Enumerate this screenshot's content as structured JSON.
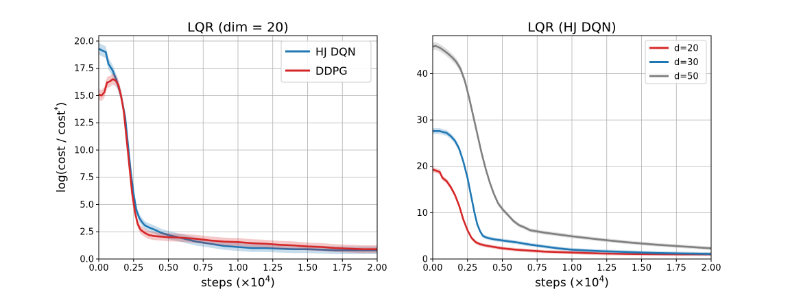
{
  "chart_data": [
    {
      "type": "line",
      "title": "LQR (dim = 20)",
      "xlabel": "steps (×10",
      "xlabel_exp": "4",
      "xlabel_close": ")",
      "ylabel": "log(cost / cost",
      "ylabel_sup": "*",
      "ylabel_close": ")",
      "xlim": [
        0,
        2
      ],
      "ylim": [
        0,
        20.5
      ],
      "x_ticks": [
        0,
        0.25,
        0.5,
        0.75,
        1.0,
        1.25,
        1.5,
        1.75,
        2.0
      ],
      "x_tick_labels": [
        "0.00",
        "0.25",
        "0.50",
        "0.75",
        "1.00",
        "1.25",
        "1.50",
        "1.75",
        "2.00"
      ],
      "y_ticks": [
        0,
        2.5,
        5,
        7.5,
        10,
        12.5,
        15,
        17.5,
        20
      ],
      "y_tick_labels": [
        "0.0",
        "2.5",
        "5.0",
        "7.5",
        "10.0",
        "12.5",
        "15.0",
        "17.5",
        "20.0"
      ],
      "grid": true,
      "legend_position": "top-right",
      "series": [
        {
          "name": "HJ DQN",
          "color": "#1f77b4",
          "x": [
            0,
            0.03,
            0.05,
            0.07,
            0.1,
            0.13,
            0.16,
            0.19,
            0.21,
            0.23,
            0.25,
            0.27,
            0.29,
            0.31,
            0.33,
            0.36,
            0.4,
            0.45,
            0.5,
            0.6,
            0.7,
            0.8,
            0.9,
            1.0,
            1.1,
            1.2,
            1.3,
            1.4,
            1.5,
            1.6,
            1.7,
            1.8,
            1.9,
            2.0
          ],
          "y": [
            19.3,
            19.1,
            19.0,
            17.9,
            17.3,
            16.3,
            15.0,
            13.0,
            10.5,
            8.0,
            6.0,
            4.5,
            3.8,
            3.4,
            3.1,
            2.9,
            2.7,
            2.4,
            2.2,
            1.9,
            1.6,
            1.4,
            1.2,
            1.1,
            1.0,
            1.0,
            0.95,
            0.9,
            0.9,
            0.85,
            0.8,
            0.8,
            0.8,
            0.8
          ]
        },
        {
          "name": "DDPG",
          "color": "#d62728",
          "x": [
            0,
            0.02,
            0.04,
            0.06,
            0.08,
            0.1,
            0.12,
            0.14,
            0.16,
            0.18,
            0.2,
            0.22,
            0.24,
            0.26,
            0.28,
            0.3,
            0.33,
            0.36,
            0.4,
            0.45,
            0.5,
            0.6,
            0.7,
            0.8,
            0.9,
            1.0,
            1.1,
            1.2,
            1.3,
            1.4,
            1.5,
            1.6,
            1.7,
            1.8,
            1.9,
            2.0
          ],
          "y": [
            15.1,
            15.0,
            15.3,
            16.2,
            16.3,
            16.5,
            16.4,
            16.0,
            15.0,
            13.5,
            11.0,
            8.5,
            6.0,
            4.3,
            3.2,
            2.7,
            2.4,
            2.2,
            2.1,
            2.05,
            2.0,
            1.95,
            1.85,
            1.7,
            1.6,
            1.55,
            1.45,
            1.4,
            1.3,
            1.25,
            1.15,
            1.1,
            1.0,
            0.95,
            0.9,
            0.9
          ]
        }
      ]
    },
    {
      "type": "line",
      "title": "LQR (HJ DQN)",
      "xlabel": "steps (×10",
      "xlabel_exp": "4",
      "xlabel_close": ")",
      "xlim": [
        0,
        2
      ],
      "ylim": [
        0,
        48.2
      ],
      "x_ticks": [
        0,
        0.25,
        0.5,
        0.75,
        1.0,
        1.25,
        1.5,
        1.75,
        2.0
      ],
      "x_tick_labels": [
        "0.00",
        "0.25",
        "0.50",
        "0.75",
        "1.00",
        "1.25",
        "1.50",
        "1.75",
        "2.00"
      ],
      "y_ticks": [
        0,
        10,
        20,
        30,
        40
      ],
      "y_tick_labels": [
        "0",
        "10",
        "20",
        "30",
        "40"
      ],
      "grid": true,
      "legend_position": "top-right",
      "series": [
        {
          "name": "d=20",
          "color": "#d62728",
          "x": [
            0,
            0.03,
            0.05,
            0.07,
            0.1,
            0.13,
            0.16,
            0.19,
            0.22,
            0.25,
            0.28,
            0.31,
            0.34,
            0.38,
            0.42,
            0.5,
            0.6,
            0.7,
            0.8,
            1.0,
            1.2,
            1.4,
            1.6,
            1.8,
            2.0
          ],
          "y": [
            19.3,
            19.0,
            18.8,
            17.5,
            16.8,
            15.5,
            13.8,
            11.5,
            8.5,
            6.2,
            4.5,
            3.6,
            3.2,
            2.9,
            2.7,
            2.3,
            2.0,
            1.8,
            1.6,
            1.4,
            1.2,
            1.1,
            1.05,
            1.0,
            1.0
          ]
        },
        {
          "name": "d=30",
          "color": "#1f77b4",
          "x": [
            0,
            0.05,
            0.1,
            0.13,
            0.16,
            0.19,
            0.22,
            0.25,
            0.28,
            0.3,
            0.32,
            0.34,
            0.36,
            0.38,
            0.4,
            0.45,
            0.5,
            0.6,
            0.7,
            0.8,
            0.9,
            1.0,
            1.2,
            1.4,
            1.6,
            1.8,
            2.0
          ],
          "y": [
            27.6,
            27.6,
            27.2,
            26.5,
            25.5,
            23.8,
            21.0,
            17.5,
            13.0,
            10.0,
            7.5,
            6.0,
            5.0,
            4.7,
            4.5,
            4.2,
            4.0,
            3.6,
            3.1,
            2.7,
            2.3,
            2.0,
            1.7,
            1.5,
            1.3,
            1.2,
            1.1
          ]
        },
        {
          "name": "d=50",
          "color": "#7f7f7f",
          "x": [
            0,
            0.02,
            0.05,
            0.08,
            0.11,
            0.14,
            0.17,
            0.2,
            0.23,
            0.26,
            0.29,
            0.32,
            0.35,
            0.38,
            0.41,
            0.44,
            0.47,
            0.5,
            0.54,
            0.58,
            0.62,
            0.66,
            0.7,
            0.8,
            0.9,
            1.0,
            1.2,
            1.4,
            1.6,
            1.8,
            2.0
          ],
          "y": [
            45.8,
            46.0,
            45.6,
            45.0,
            44.3,
            43.5,
            42.5,
            41.0,
            38.5,
            35.0,
            31.0,
            27.0,
            23.0,
            19.5,
            16.5,
            14.0,
            12.0,
            10.8,
            9.5,
            8.2,
            7.3,
            6.8,
            6.2,
            5.7,
            5.3,
            4.9,
            4.2,
            3.6,
            3.1,
            2.7,
            2.3
          ]
        }
      ]
    }
  ]
}
